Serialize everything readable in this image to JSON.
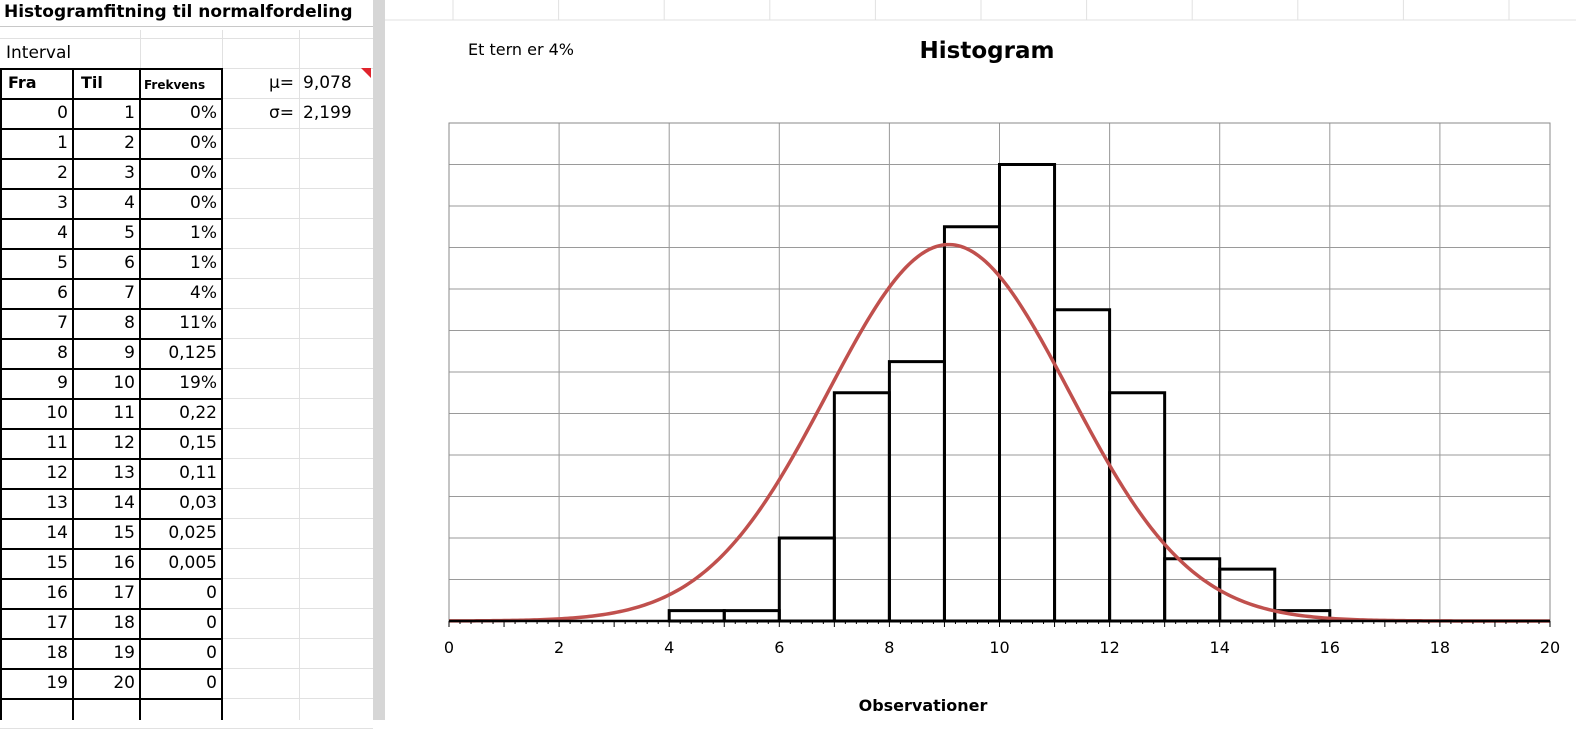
{
  "sheet": {
    "title": "Histogramfitning til normalfordeling",
    "interval_label": "Interval",
    "headers": {
      "fra": "Fra",
      "til": "Til",
      "frekvens": "Frekvens"
    },
    "mu_label": "μ=",
    "mu_value": "9,078",
    "sigma_label": "σ=",
    "sigma_value": "2,199",
    "rows": [
      {
        "fra": "0",
        "til": "1",
        "frekvens": "0%"
      },
      {
        "fra": "1",
        "til": "2",
        "frekvens": "0%"
      },
      {
        "fra": "2",
        "til": "3",
        "frekvens": "0%"
      },
      {
        "fra": "3",
        "til": "4",
        "frekvens": "0%"
      },
      {
        "fra": "4",
        "til": "5",
        "frekvens": "1%"
      },
      {
        "fra": "5",
        "til": "6",
        "frekvens": "1%"
      },
      {
        "fra": "6",
        "til": "7",
        "frekvens": "4%"
      },
      {
        "fra": "7",
        "til": "8",
        "frekvens": "11%"
      },
      {
        "fra": "8",
        "til": "9",
        "frekvens": "0,125"
      },
      {
        "fra": "9",
        "til": "10",
        "frekvens": "19%"
      },
      {
        "fra": "10",
        "til": "11",
        "frekvens": "0,22"
      },
      {
        "fra": "11",
        "til": "12",
        "frekvens": "0,15"
      },
      {
        "fra": "12",
        "til": "13",
        "frekvens": "0,11"
      },
      {
        "fra": "13",
        "til": "14",
        "frekvens": "0,03"
      },
      {
        "fra": "14",
        "til": "15",
        "frekvens": "0,025"
      },
      {
        "fra": "15",
        "til": "16",
        "frekvens": "0,005"
      },
      {
        "fra": "16",
        "til": "17",
        "frekvens": "0"
      },
      {
        "fra": "17",
        "til": "18",
        "frekvens": "0"
      },
      {
        "fra": "18",
        "til": "19",
        "frekvens": "0"
      },
      {
        "fra": "19",
        "til": "20",
        "frekvens": "0"
      }
    ]
  },
  "chart_data": {
    "type": "bar",
    "title": "Histogram",
    "annotation": "Et tern er 4%",
    "xlabel": "Observationer",
    "ylabel": "",
    "xlim": [
      0,
      20
    ],
    "ylim": [
      0,
      0.24
    ],
    "x_ticks": [
      "0",
      "2",
      "4",
      "6",
      "8",
      "10",
      "12",
      "14",
      "16",
      "18",
      "20"
    ],
    "grid": true,
    "bins": [
      {
        "from": 0,
        "to": 1,
        "value": 0
      },
      {
        "from": 1,
        "to": 2,
        "value": 0
      },
      {
        "from": 2,
        "to": 3,
        "value": 0
      },
      {
        "from": 3,
        "to": 4,
        "value": 0
      },
      {
        "from": 4,
        "to": 5,
        "value": 0.005
      },
      {
        "from": 5,
        "to": 6,
        "value": 0.005
      },
      {
        "from": 6,
        "to": 7,
        "value": 0.04
      },
      {
        "from": 7,
        "to": 8,
        "value": 0.11
      },
      {
        "from": 8,
        "to": 9,
        "value": 0.125
      },
      {
        "from": 9,
        "to": 10,
        "value": 0.19
      },
      {
        "from": 10,
        "to": 11,
        "value": 0.22
      },
      {
        "from": 11,
        "to": 12,
        "value": 0.15
      },
      {
        "from": 12,
        "to": 13,
        "value": 0.11
      },
      {
        "from": 13,
        "to": 14,
        "value": 0.03
      },
      {
        "from": 14,
        "to": 15,
        "value": 0.025
      },
      {
        "from": 15,
        "to": 16,
        "value": 0.005
      },
      {
        "from": 16,
        "to": 17,
        "value": 0
      },
      {
        "from": 17,
        "to": 18,
        "value": 0
      },
      {
        "from": 18,
        "to": 19,
        "value": 0
      },
      {
        "from": 19,
        "to": 20,
        "value": 0
      }
    ],
    "normal_curve": {
      "mu": 9.078,
      "sigma": 2.199
    },
    "colors": {
      "bars": "#000000",
      "curve": "#c0504d",
      "grid": "#9a9a9a"
    }
  }
}
